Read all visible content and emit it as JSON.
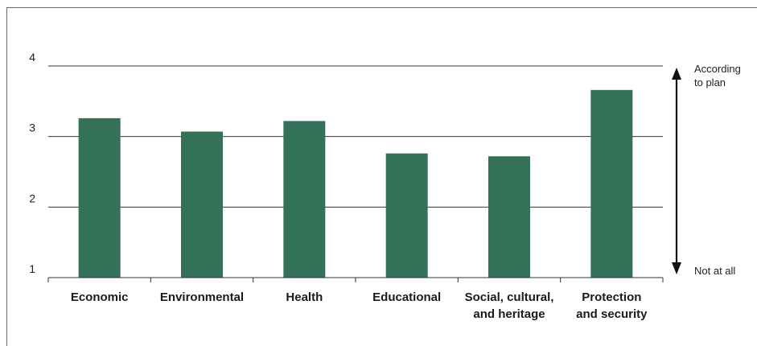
{
  "chart_data": {
    "type": "bar",
    "categories": [
      [
        "Economic"
      ],
      [
        "Environmental"
      ],
      [
        "Health"
      ],
      [
        "Educational"
      ],
      [
        "Social, cultural,",
        "and heritage"
      ],
      [
        "Protection",
        "and security"
      ]
    ],
    "values": [
      3.26,
      3.07,
      3.22,
      2.76,
      2.72,
      3.66
    ],
    "ylim": [
      1,
      4
    ],
    "yticks": [
      "1",
      "2",
      "3",
      "4"
    ],
    "grid": true,
    "bar_color": "#337259",
    "annotation": {
      "top_label": [
        "According",
        "to plan"
      ],
      "bottom_label": "Not at all",
      "arrow": "double-headed vertical"
    }
  }
}
